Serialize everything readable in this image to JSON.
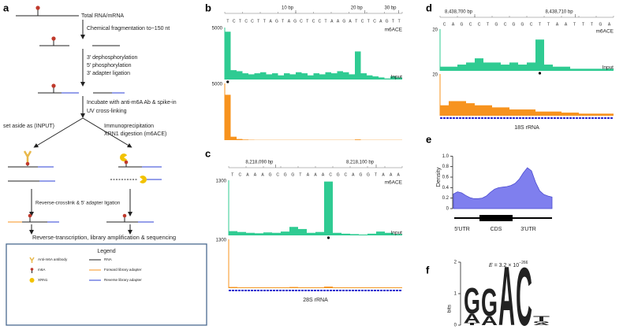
{
  "panel_labels": [
    "a",
    "b",
    "c",
    "d",
    "e",
    "f"
  ],
  "workflow": {
    "input": "Total RNA/mRNA",
    "fragmentation": "Chemical fragmentation to~150 nt",
    "end_repair": [
      "3′ dephosphorylation",
      "5′ phosphorylation",
      "3′ adapter ligation"
    ],
    "incubation": [
      "Incubate with anti-m6A Ab & spike-in",
      "UV cross-linking"
    ],
    "input_branch": "set aside as (INPUT)",
    "ip_branch": [
      "Immunoprecipitation",
      "XRN1 digestion (m6ACE)"
    ],
    "ligation": "Reverse-crosslink & 5′ adapter ligation",
    "sequencing": "Reverse-transcription, library amplification & sequencing"
  },
  "legend": {
    "title": "Legend",
    "items": [
      "Anti-m6A antibody",
      "RNA",
      "m6A",
      "Forward library adapter",
      "XRN1",
      "Reverse library adapter"
    ]
  },
  "base_colors": {
    "A": "#1aa34a",
    "C": "#2b3fd6",
    "G": "#f0a000",
    "T": "#d62020"
  },
  "tracks": {
    "b": {
      "ruler": [
        "10 bp",
        "20 bp",
        "30 bp"
      ],
      "sequence": [
        "T",
        "C",
        "T",
        "C",
        "C",
        "T",
        "T",
        "A",
        "G",
        "T",
        "A",
        "G",
        "C",
        "T",
        "C",
        "C",
        "T",
        "A",
        "A",
        "G",
        "A",
        "T",
        "C",
        "T",
        "C",
        "A",
        "G",
        "T",
        "T"
      ],
      "m6ace": {
        "label": "m6ACE",
        "scale": 5000,
        "color": "#2fcb92",
        "values": [
          4600,
          900,
          800,
          600,
          500,
          600,
          700,
          500,
          600,
          400,
          600,
          500,
          700,
          600,
          400,
          600,
          500,
          700,
          600,
          800,
          700,
          500,
          2700,
          600,
          400,
          300,
          200,
          100,
          300,
          200
        ]
      },
      "input": {
        "label": "Input",
        "scale": 5000,
        "color": "#f7931e",
        "values": [
          4000,
          300,
          100,
          50,
          30,
          20,
          20,
          20,
          20,
          20,
          20,
          20,
          20,
          20,
          20,
          20,
          20,
          20,
          20,
          20,
          20,
          20,
          60,
          20,
          20,
          20,
          20,
          20,
          20,
          20
        ]
      }
    },
    "c": {
      "ruler": [
        "8,218,090 bp",
        "8,218,100 bp"
      ],
      "sequence": [
        "T",
        "C",
        "A",
        "A",
        "A",
        "G",
        "C",
        "G",
        "G",
        "T",
        "A",
        "A",
        "A",
        "C",
        "G",
        "C",
        "A",
        "G",
        "G",
        "T",
        "A",
        "A",
        "A"
      ],
      "m6ace": {
        "label": "m6ACE",
        "scale": 1300,
        "color": "#2fcb92",
        "values": [
          100,
          80,
          60,
          50,
          70,
          60,
          90,
          200,
          150,
          60,
          80,
          1270,
          60,
          40,
          30,
          20,
          40,
          90,
          60,
          30
        ]
      },
      "input": {
        "label": "Input",
        "scale": 1300,
        "color": "#f7931e",
        "values": [
          30,
          20,
          20,
          20,
          20,
          20,
          20,
          30,
          20,
          20,
          20,
          40,
          20,
          20,
          20,
          20,
          20,
          20,
          20,
          20
        ]
      },
      "gene": "28S rRNA"
    },
    "d": {
      "ruler": [
        "8,438,700 bp",
        "8,438,710 bp"
      ],
      "sequence": [
        "C",
        "A",
        "G",
        "C",
        "C",
        "T",
        "G",
        "C",
        "G",
        "G",
        "C",
        "T",
        "T",
        "A",
        "A",
        "T",
        "T",
        "T",
        "G",
        "A"
      ],
      "m6ace": {
        "label": "m6ACE",
        "scale": 20,
        "color": "#2fcb92",
        "values": [
          2,
          2,
          3,
          4,
          6,
          4,
          4,
          3,
          4,
          3,
          4,
          15,
          3,
          2,
          2,
          1,
          1,
          1,
          1,
          1
        ]
      },
      "input": {
        "label": "Input",
        "scale": 20,
        "color": "#f7931e",
        "values": [
          5,
          7,
          7,
          6,
          5,
          5,
          4,
          4,
          3,
          3,
          3,
          2,
          2,
          2,
          1.5,
          1.5,
          1,
          1,
          1,
          1
        ]
      },
      "gene": "18S rRNA"
    }
  },
  "density": {
    "ylabel": "Density",
    "ylim": [
      0,
      1.2
    ],
    "yticks": [
      0,
      0.2,
      0.4,
      0.6,
      0.8,
      {
        "value": 1,
        "label": "1.0"
      }
    ],
    "regions": [
      "5′UTR",
      "CDS",
      "3′UTR"
    ],
    "fill": "#7f7fee",
    "y": [
      0.28,
      0.32,
      0.3,
      0.25,
      0.21,
      0.19,
      0.19,
      0.2,
      0.24,
      0.31,
      0.37,
      0.4,
      0.41,
      0.42,
      0.44,
      0.48,
      0.56,
      0.68,
      0.78,
      0.72,
      0.5,
      0.34,
      0.27,
      0.24,
      0.22
    ]
  },
  "logo": {
    "ylabel": "bits",
    "ylim": [
      0,
      2
    ],
    "yticks": [
      0,
      1,
      2
    ],
    "evalue": {
      "symbol": "E",
      "text": " = 3.2 × 10",
      "exponent": "−266"
    },
    "positions": [
      [
        {
          "base": "T",
          "bits": 0.08
        },
        {
          "base": "A",
          "bits": 0.3
        },
        {
          "base": "G",
          "bits": 0.85
        }
      ],
      [
        {
          "base": "A",
          "bits": 0.3
        },
        {
          "base": "G",
          "bits": 0.9
        }
      ],
      [
        {
          "base": "A",
          "bits": 1.95
        }
      ],
      [
        {
          "base": "C",
          "bits": 1.92
        }
      ],
      [
        {
          "base": "A",
          "bits": 0.06
        },
        {
          "base": "G",
          "bits": 0.06
        },
        {
          "base": "T",
          "bits": 0.16
        }
      ]
    ]
  }
}
